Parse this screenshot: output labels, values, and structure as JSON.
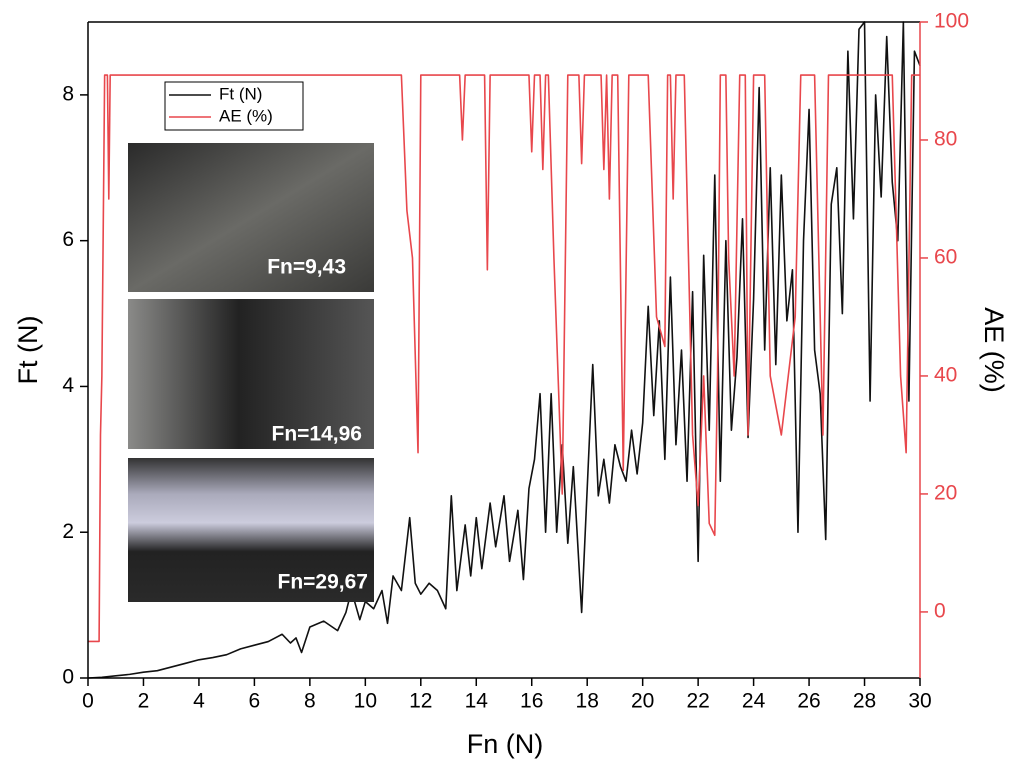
{
  "chart_data": {
    "type": "line",
    "xlabel": "Fn (N)",
    "ylabel": "Ft (N)",
    "y2label": "AE (%)",
    "xlim": [
      0,
      30
    ],
    "xticks": [
      0,
      2,
      4,
      6,
      8,
      10,
      12,
      14,
      16,
      18,
      20,
      22,
      24,
      26,
      28,
      30
    ],
    "ylim": [
      0,
      9
    ],
    "yticks": [
      0,
      2,
      4,
      6,
      8
    ],
    "y2lim": [
      -11.2,
      100
    ],
    "y2ticks": [
      0,
      20,
      40,
      60,
      80,
      100
    ],
    "legend": "top-left",
    "annotations": [
      "Fn=9,43",
      "Fn=14,96",
      "Fn=29,67"
    ],
    "series": [
      {
        "name": "Ft (N)",
        "color": "#111111",
        "x": [
          0,
          0.5,
          1,
          1.5,
          2,
          2.5,
          3,
          3.5,
          4,
          4.5,
          5,
          5.5,
          6,
          6.5,
          7,
          7.3,
          7.5,
          7.7,
          8,
          8.5,
          9,
          9.3,
          9.5,
          9.8,
          10,
          10.3,
          10.6,
          10.8,
          11,
          11.3,
          11.6,
          11.8,
          12,
          12.3,
          12.6,
          12.9,
          13.1,
          13.3,
          13.6,
          13.8,
          14,
          14.2,
          14.5,
          14.7,
          15,
          15.2,
          15.5,
          15.7,
          15.9,
          16.1,
          16.3,
          16.5,
          16.7,
          16.9,
          17.1,
          17.3,
          17.5,
          17.8,
          18,
          18.2,
          18.4,
          18.6,
          18.8,
          19,
          19.2,
          19.4,
          19.6,
          19.8,
          20,
          20.2,
          20.4,
          20.6,
          20.8,
          21,
          21.2,
          21.4,
          21.6,
          21.8,
          22,
          22.2,
          22.4,
          22.6,
          22.8,
          23,
          23.2,
          23.4,
          23.6,
          23.8,
          24,
          24.2,
          24.4,
          24.6,
          24.8,
          25,
          25.2,
          25.4,
          25.6,
          25.8,
          26,
          26.2,
          26.4,
          26.6,
          26.8,
          27,
          27.2,
          27.4,
          27.6,
          27.8,
          28,
          28.2,
          28.4,
          28.6,
          28.8,
          29,
          29.2,
          29.4,
          29.6,
          29.8,
          30
        ],
        "values": [
          0,
          0.01,
          0.03,
          0.05,
          0.08,
          0.1,
          0.15,
          0.2,
          0.25,
          0.28,
          0.32,
          0.4,
          0.45,
          0.5,
          0.6,
          0.48,
          0.55,
          0.35,
          0.7,
          0.78,
          0.65,
          0.9,
          1.2,
          0.8,
          1.05,
          0.95,
          1.2,
          0.75,
          1.4,
          1.2,
          2.2,
          1.3,
          1.15,
          1.3,
          1.2,
          0.95,
          2.5,
          1.2,
          2.1,
          1.4,
          2.2,
          1.5,
          2.4,
          1.8,
          2.5,
          1.6,
          2.3,
          1.35,
          2.6,
          3.0,
          3.9,
          2.0,
          3.9,
          2.0,
          3.2,
          1.85,
          2.9,
          0.9,
          2.6,
          4.3,
          2.5,
          3.0,
          2.4,
          3.2,
          2.9,
          2.7,
          3.4,
          2.8,
          3.5,
          5.1,
          3.6,
          4.9,
          3.0,
          5.5,
          3.2,
          4.5,
          2.7,
          5.3,
          1.6,
          5.8,
          3.4,
          6.9,
          2.7,
          6.0,
          3.4,
          4.4,
          6.3,
          3.3,
          5.2,
          8.1,
          4.5,
          7.0,
          4.3,
          6.9,
          4.9,
          5.6,
          2.0,
          6.0,
          7.8,
          4.5,
          3.9,
          1.9,
          6.5,
          7.0,
          5.0,
          8.6,
          6.3,
          8.9,
          9.0,
          3.8,
          8.0,
          6.6,
          8.8,
          6.8,
          6.0,
          9.0,
          3.8,
          8.6,
          8.4
        ]
      },
      {
        "name": "AE (%)",
        "color": "#e8474c",
        "axis": "y2",
        "x": [
          0,
          0.4,
          0.45,
          0.5,
          0.6,
          0.7,
          0.75,
          0.8,
          11.3,
          11.5,
          11.7,
          11.9,
          12.0,
          13.4,
          13.5,
          13.6,
          14.3,
          14.4,
          14.5,
          15.9,
          16.0,
          16.1,
          16.3,
          16.4,
          16.5,
          16.6,
          16.8,
          17.1,
          17.3,
          17.7,
          17.8,
          17.9,
          18.5,
          18.6,
          18.7,
          18.8,
          18.9,
          19.1,
          19.3,
          19.5,
          20.2,
          20.5,
          20.8,
          20.9,
          21.0,
          21.1,
          21.2,
          21.5,
          21.8,
          22.0,
          22.2,
          22.4,
          22.6,
          22.7,
          22.8,
          23.0,
          23.1,
          23.3,
          23.5,
          23.7,
          23.8,
          24.0,
          24.4,
          24.6,
          25.0,
          25.5,
          25.7,
          26.2,
          26.5,
          26.7,
          29.0,
          29.3,
          29.5,
          29.7,
          30
        ],
        "values": [
          -5,
          -5,
          30,
          40,
          91,
          91,
          70,
          91,
          91,
          68,
          60,
          27,
          91,
          91,
          80,
          91,
          91,
          58,
          91,
          91,
          78,
          91,
          91,
          75,
          91,
          91,
          60,
          20,
          91,
          91,
          76,
          91,
          91,
          75,
          91,
          70,
          91,
          91,
          24,
          91,
          91,
          50,
          45,
          91,
          91,
          70,
          91,
          91,
          30,
          18,
          40,
          15,
          13,
          40,
          91,
          91,
          60,
          40,
          91,
          91,
          30,
          91,
          91,
          40,
          30,
          50,
          91,
          91,
          30,
          91,
          91,
          40,
          27,
          91,
          91
        ]
      }
    ]
  }
}
